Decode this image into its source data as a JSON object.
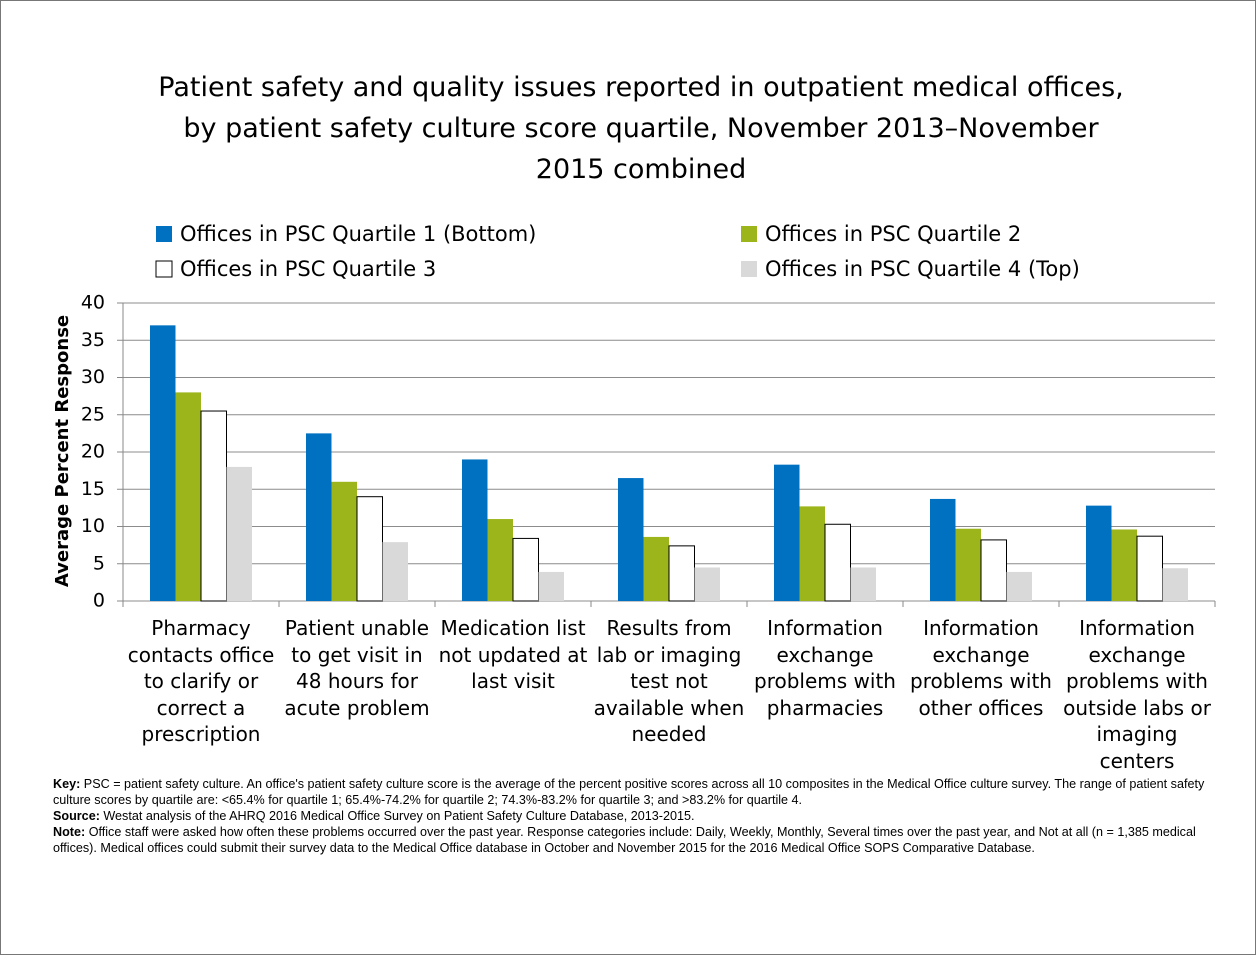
{
  "chart_data": {
    "type": "bar",
    "title": "Patient safety and quality issues reported in outpatient medical offices, by patient safety culture score quartile, November 2013–November 2015 combined",
    "y_label": "Average Percent Response",
    "categories": [
      "Pharmacy contacts office to clarify or correct a prescription",
      "Patient unable to get visit in 48 hours for acute problem",
      "Medication list not updated at last visit",
      "Results from lab or imaging test not available when needed",
      "Information exchange problems with pharmacies",
      "Information exchange problems with other offices",
      "Information exchange problems with outside labs or imaging centers"
    ],
    "series": [
      {
        "name": "Offices in PSC Quartile 1 (Bottom)",
        "color": "#0070c0",
        "values": [
          37,
          22.5,
          19,
          16.5,
          18.3,
          13.7,
          12.8
        ]
      },
      {
        "name": "Offices in PSC Quartile 2",
        "color": "#9bb51a",
        "values": [
          28,
          16,
          11,
          8.6,
          12.7,
          9.7,
          9.6
        ]
      },
      {
        "name": "Offices in PSC Quartile 3",
        "color": "#ffffff",
        "values": [
          25.5,
          14,
          8.4,
          7.4,
          10.3,
          8.2,
          8.7
        ]
      },
      {
        "name": "Offices in PSC Quartile 4 (Top)",
        "color": "#d9d9d9",
        "values": [
          18,
          7.9,
          3.9,
          4.5,
          4.5,
          3.9,
          4.4
        ]
      }
    ],
    "ylim": [
      0,
      40
    ],
    "yticks": [
      0,
      5,
      10,
      15,
      20,
      25,
      30,
      35,
      40
    ],
    "grid": true
  },
  "notes": [
    {
      "label": "Key:",
      "text": "PSC = patient safety culture. An office's patient safety culture score is the average of the percent positive scores across all 10 composites in the Medical Office culture survey. The range of patient safety culture scores by quartile are: <65.4% for quartile 1; 65.4%-74.2% for quartile 2; 74.3%-83.2% for quartile 3; and >83.2% for quartile 4."
    },
    {
      "label": "Source:",
      "text": "Westat analysis of the AHRQ 2016 Medical Office Survey on Patient Safety Culture Database, 2013-2015."
    },
    {
      "label": "Note:",
      "text": "Office staff were asked how often these problems occurred over the past year. Response categories include: Daily, Weekly, Monthly, Several times over the past year, and Not at all (n = 1,385 medical offices). Medical offices could submit their survey data to the Medical Office database in October and November 2015 for the 2016 Medical Office SOPS Comparative Database."
    }
  ]
}
